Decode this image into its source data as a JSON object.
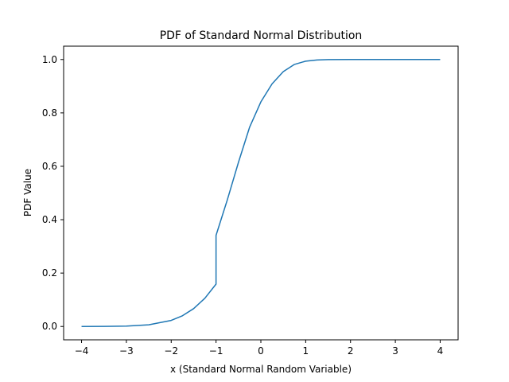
{
  "chart_data": {
    "type": "line",
    "title": "PDF of Standard Normal Distribution",
    "xlabel": "x (Standard Normal Random Variable)",
    "ylabel": "PDF Value",
    "xlim": [
      -4.4,
      4.4
    ],
    "ylim": [
      -0.05,
      1.05
    ],
    "xticks": [
      -4,
      -3,
      -2,
      -1,
      0,
      1,
      2,
      3,
      4
    ],
    "xtick_labels": [
      "−4",
      "−3",
      "−2",
      "−1",
      "0",
      "1",
      "2",
      "3",
      "4"
    ],
    "yticks": [
      0.0,
      0.2,
      0.4,
      0.6,
      0.8,
      1.0
    ],
    "ytick_labels": [
      "0.0",
      "0.2",
      "0.4",
      "0.6",
      "0.8",
      "1.0"
    ],
    "grid": false,
    "color": "#1f77b4",
    "series": [
      {
        "x": [
          -4,
          -3.5,
          -3,
          -2.5,
          -2,
          -1.75,
          -1.5,
          -1.25,
          -1.0,
          -1.0,
          -0.75,
          -0.5,
          -0.25,
          0,
          0.25,
          0.5,
          0.75,
          1.0,
          1.25,
          1.5,
          2,
          2.5,
          3,
          3.5,
          4
        ],
        "y": [
          0.0,
          0.0002,
          0.0013,
          0.0062,
          0.0228,
          0.0401,
          0.0668,
          0.1056,
          0.1587,
          0.3413,
          0.4734,
          0.6147,
          0.747,
          0.8413,
          0.9088,
          0.9545,
          0.9817,
          0.9938,
          0.9982,
          0.9996,
          0.99999,
          1.0,
          1.0,
          1.0,
          1.0
        ]
      }
    ]
  }
}
